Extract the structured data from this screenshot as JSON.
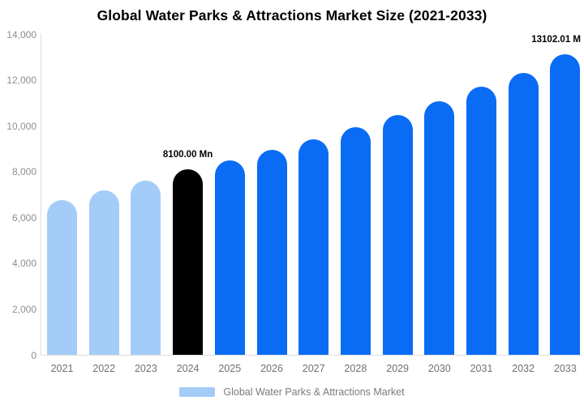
{
  "title": "Global Water Parks & Attractions Market Size (2021-2033)",
  "legend": {
    "label": "Global Water Parks & Attractions Market",
    "swatch_color": "#a4ccf8"
  },
  "colors": {
    "historical_bar": "#a4ccf8",
    "base_year_bar": "#000000",
    "forecast_bar": "#0a6cf5",
    "axis_line": "#dddddd",
    "y_tick_text": "#8e8e8e",
    "x_tick_text": "#707070",
    "title_text": "#000000",
    "data_label_text": "#000000"
  },
  "chart_data": {
    "type": "bar",
    "title": "Global Water Parks & Attractions Market Size (2021-2033)",
    "categories": [
      "2021",
      "2022",
      "2023",
      "2024",
      "2025",
      "2026",
      "2027",
      "2028",
      "2029",
      "2030",
      "2031",
      "2032",
      "2033"
    ],
    "series": [
      {
        "name": "Global Water Parks & Attractions Market",
        "values": [
          6760,
          7180,
          7590,
          8100,
          8480,
          8950,
          9390,
          9950,
          10460,
          11060,
          11690,
          12320,
          13102.01
        ]
      }
    ],
    "bar_colors": [
      "#a4ccf8",
      "#a4ccf8",
      "#a4ccf8",
      "#000000",
      "#0a6cf5",
      "#0a6cf5",
      "#0a6cf5",
      "#0a6cf5",
      "#0a6cf5",
      "#0a6cf5",
      "#0a6cf5",
      "#0a6cf5",
      "#0a6cf5"
    ],
    "xlabel": "",
    "ylabel": "",
    "ylim": [
      0,
      14000
    ],
    "ytick_values": [
      0,
      2000,
      4000,
      6000,
      8000,
      10000,
      12000,
      14000
    ],
    "ytick_labels": [
      "0",
      "2,000",
      "4,000",
      "6,000",
      "8,000",
      "10,000",
      "12,000",
      "14,000"
    ],
    "grid": false,
    "legend_position": "bottom",
    "annotations": [
      {
        "category": "2024",
        "text": "8100.00 Mn"
      },
      {
        "category": "2033",
        "text": "13102.01 M"
      }
    ]
  }
}
